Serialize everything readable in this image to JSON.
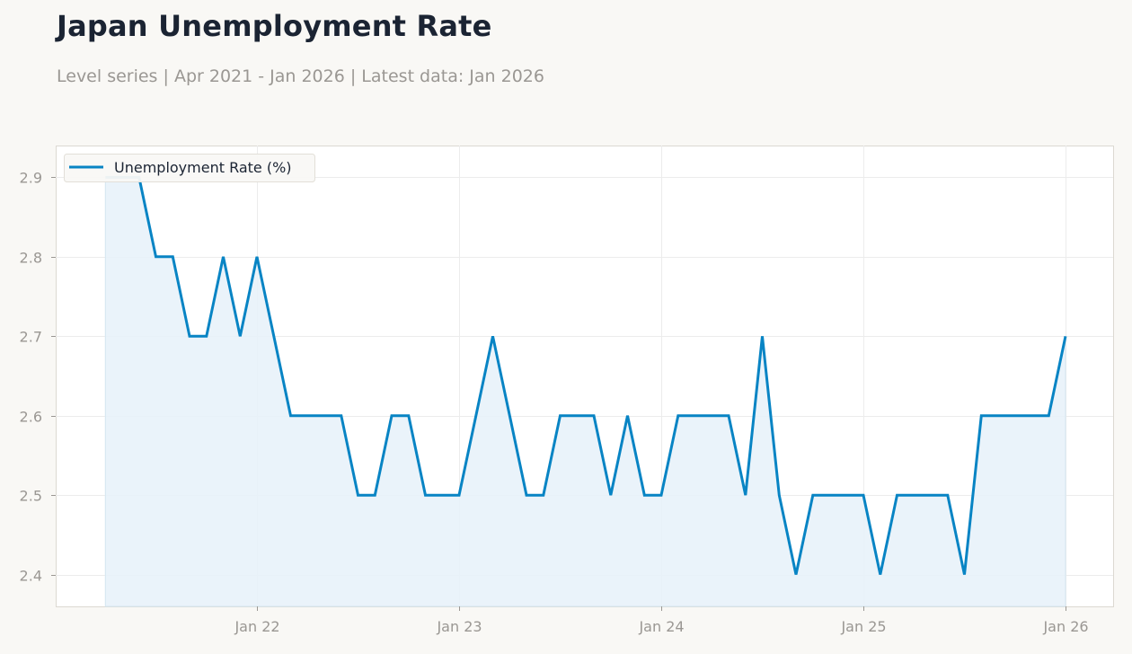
{
  "header": {
    "title": "Japan Unemployment Rate",
    "subtitle": "Level series | Apr 2021 - Jan 2026 | Latest data: Jan 2026"
  },
  "colors": {
    "line": "#0884c4",
    "fill": "#e8f2fa",
    "grid": "#ececec",
    "axis": "#dcd9d2",
    "background": "#f9f8f5",
    "plot_background": "#ffffff"
  },
  "chart_data": {
    "type": "area",
    "title": "Japan Unemployment Rate",
    "subtitle": "Level series | Apr 2021 - Jan 2026 | Latest data: Jan 2026",
    "xlabel": "",
    "ylabel": "",
    "ylim": [
      2.36,
      2.94
    ],
    "grid": true,
    "legend_position": "upper left",
    "yticks": [
      2.4,
      2.5,
      2.6,
      2.7,
      2.8,
      2.9
    ],
    "xticks": [
      "Jan 22",
      "Jan 23",
      "Jan 24",
      "Jan 25",
      "Jan 26"
    ],
    "series": [
      {
        "name": "Unemployment Rate (%)",
        "x": [
          "2021-04",
          "2021-05",
          "2021-06",
          "2021-07",
          "2021-08",
          "2021-09",
          "2021-10",
          "2021-11",
          "2021-12",
          "2022-01",
          "2022-02",
          "2022-03",
          "2022-04",
          "2022-05",
          "2022-06",
          "2022-07",
          "2022-08",
          "2022-09",
          "2022-10",
          "2022-11",
          "2022-12",
          "2023-01",
          "2023-02",
          "2023-03",
          "2023-04",
          "2023-05",
          "2023-06",
          "2023-07",
          "2023-08",
          "2023-09",
          "2023-10",
          "2023-11",
          "2023-12",
          "2024-01",
          "2024-02",
          "2024-03",
          "2024-04",
          "2024-05",
          "2024-06",
          "2024-07",
          "2024-08",
          "2024-09",
          "2024-10",
          "2024-11",
          "2024-12",
          "2025-01",
          "2025-02",
          "2025-03",
          "2025-04",
          "2025-05",
          "2025-06",
          "2025-07",
          "2025-08",
          "2025-09",
          "2025-10",
          "2025-11",
          "2025-12",
          "2026-01"
        ],
        "values": [
          2.9,
          2.9,
          2.9,
          2.8,
          2.8,
          2.7,
          2.7,
          2.8,
          2.7,
          2.8,
          2.7,
          2.6,
          2.6,
          2.6,
          2.6,
          2.5,
          2.5,
          2.6,
          2.6,
          2.5,
          2.5,
          2.5,
          2.6,
          2.7,
          2.6,
          2.5,
          2.5,
          2.6,
          2.6,
          2.6,
          2.5,
          2.6,
          2.5,
          2.5,
          2.6,
          2.6,
          2.6,
          2.6,
          2.5,
          2.7,
          2.5,
          2.4,
          2.5,
          2.5,
          2.5,
          2.5,
          2.4,
          2.5,
          2.5,
          2.5,
          2.5,
          2.4,
          2.6,
          2.6,
          2.6,
          2.6,
          2.6,
          2.7
        ]
      }
    ]
  }
}
